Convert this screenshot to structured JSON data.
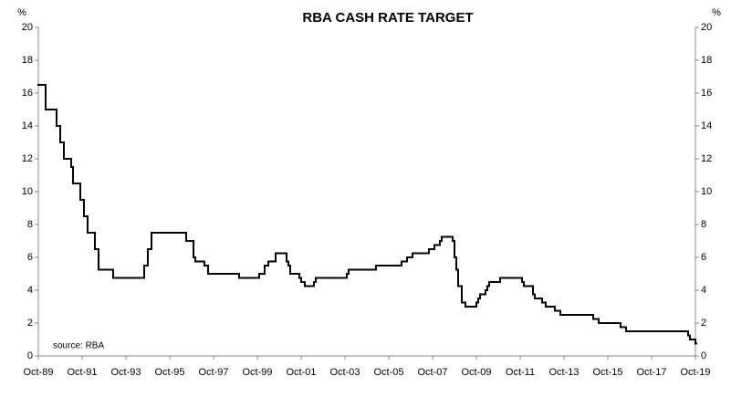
{
  "chart_data": {
    "type": "line",
    "title": "RBA CASH RATE TARGET",
    "y_label": "%",
    "y2_label": "%",
    "annotation": "source: RBA",
    "color": "#000000",
    "step": true,
    "x": [
      "Oct-89",
      "Feb-90",
      "Aug-90",
      "Oct-90",
      "Dec-90",
      "Apr-91",
      "May-91",
      "Sep-91",
      "Nov-91",
      "Jan-92",
      "May-92",
      "Jul-92",
      "Mar-93",
      "Aug-94",
      "Oct-94",
      "Dec-94",
      "Jul-96",
      "Nov-96",
      "Dec-96",
      "May-97",
      "Jul-97",
      "Dec-98",
      "Nov-99",
      "Feb-00",
      "Apr-00",
      "Aug-00",
      "Feb-01",
      "Mar-01",
      "Apr-01",
      "Sep-01",
      "Oct-01",
      "Dec-01",
      "May-02",
      "Jun-02",
      "Nov-03",
      "Dec-03",
      "Mar-05",
      "May-06",
      "Aug-06",
      "Nov-06",
      "Aug-07",
      "Nov-07",
      "Feb-08",
      "Mar-08",
      "Sep-08",
      "Oct-08",
      "Nov-08",
      "Dec-08",
      "Feb-09",
      "Apr-09",
      "Oct-09",
      "Nov-09",
      "Dec-09",
      "Mar-10",
      "Apr-10",
      "May-10",
      "Nov-10",
      "Nov-11",
      "Dec-11",
      "May-12",
      "Jun-12",
      "Oct-12",
      "Dec-12",
      "May-13",
      "Aug-13",
      "Feb-15",
      "May-15",
      "May-16",
      "Aug-16",
      "Jun-19",
      "Jul-19",
      "Oct-19"
    ],
    "values": [
      16.5,
      15,
      14,
      13,
      12,
      11.5,
      10.5,
      9.5,
      8.5,
      7.5,
      6.5,
      5.25,
      4.75,
      5.5,
      6.5,
      7.5,
      7,
      6,
      5.75,
      5.5,
      5,
      4.75,
      5,
      5.5,
      5.75,
      6.25,
      5.75,
      5.5,
      5,
      4.75,
      4.5,
      4.25,
      4.5,
      4.75,
      5,
      5.25,
      5.5,
      5.75,
      6,
      6.25,
      6.5,
      6.75,
      7,
      7.25,
      7,
      6,
      5.25,
      4.25,
      3.25,
      3,
      3.25,
      3.5,
      3.75,
      4,
      4.25,
      4.5,
      4.75,
      4.5,
      4.25,
      3.75,
      3.5,
      3.25,
      3,
      2.75,
      2.5,
      2.25,
      2,
      1.75,
      1.5,
      1.25,
      1,
      0.75
    ],
    "xticks": [
      "Oct-89",
      "Oct-91",
      "Oct-93",
      "Oct-95",
      "Oct-97",
      "Oct-99",
      "Oct-01",
      "Oct-03",
      "Oct-05",
      "Oct-07",
      "Oct-09",
      "Oct-11",
      "Oct-13",
      "Oct-15",
      "Oct-17",
      "Oct-19"
    ],
    "ylim": [
      0,
      20
    ],
    "yticks": [
      0,
      2,
      4,
      6,
      8,
      10,
      12,
      14,
      16,
      18,
      20
    ],
    "y2lim": [
      0,
      20
    ],
    "y2ticks": [
      0,
      2,
      4,
      6,
      8,
      10,
      12,
      14,
      16,
      18,
      20
    ]
  }
}
